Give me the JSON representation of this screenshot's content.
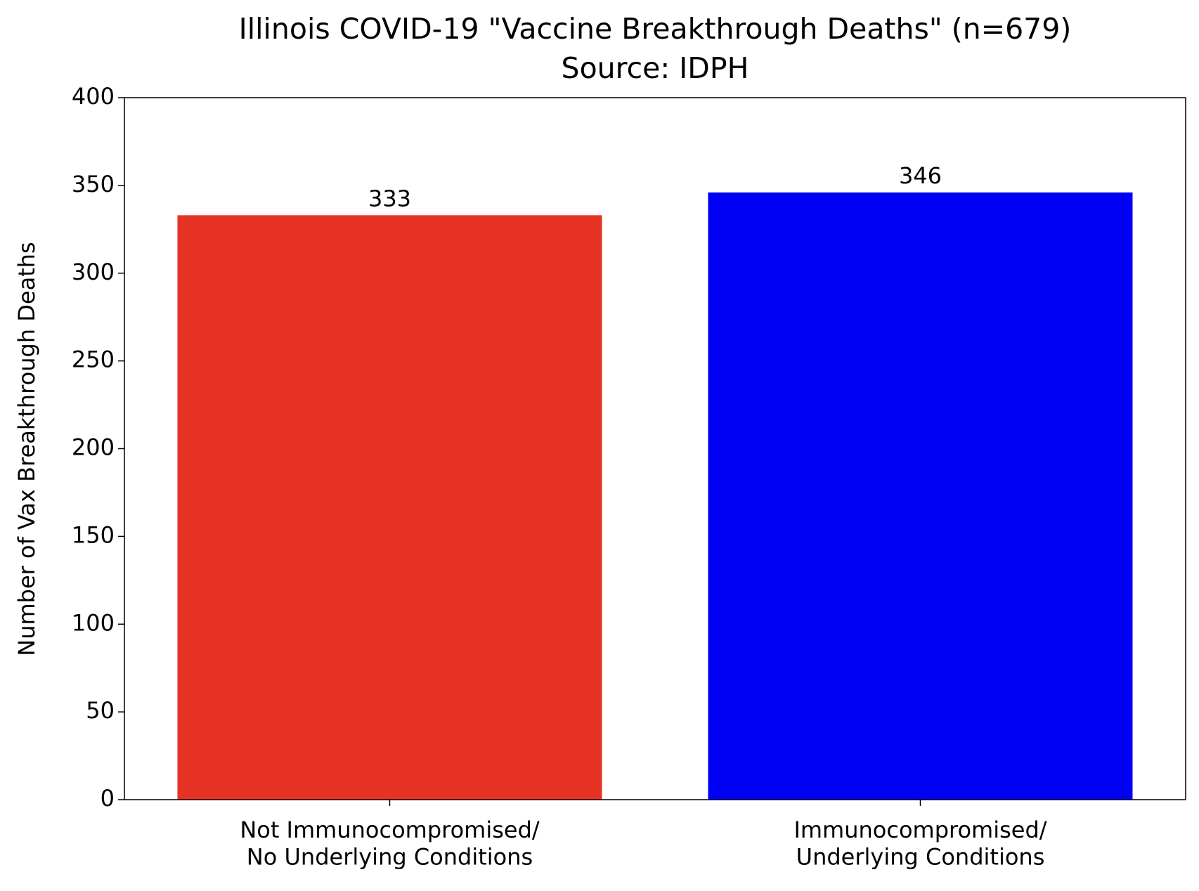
{
  "chart_data": {
    "type": "bar",
    "title": "Illinois COVID-19 \"Vaccine Breakthrough Deaths\" (n=679)",
    "subtitle": "Source: IDPH",
    "y_label": "Number of Vax Breakthrough Deaths",
    "categories": [
      "Not Immunocompromised/\nNo Underlying Conditions",
      "Immunocompromised/\nUnderlying Conditions"
    ],
    "values": [
      333,
      346
    ],
    "colors": [
      "#e63222",
      "#0000f5"
    ],
    "ylim": [
      0,
      400
    ],
    "yticks": [
      0,
      50,
      100,
      150,
      200,
      250,
      300,
      350,
      400
    ],
    "grid": false
  }
}
